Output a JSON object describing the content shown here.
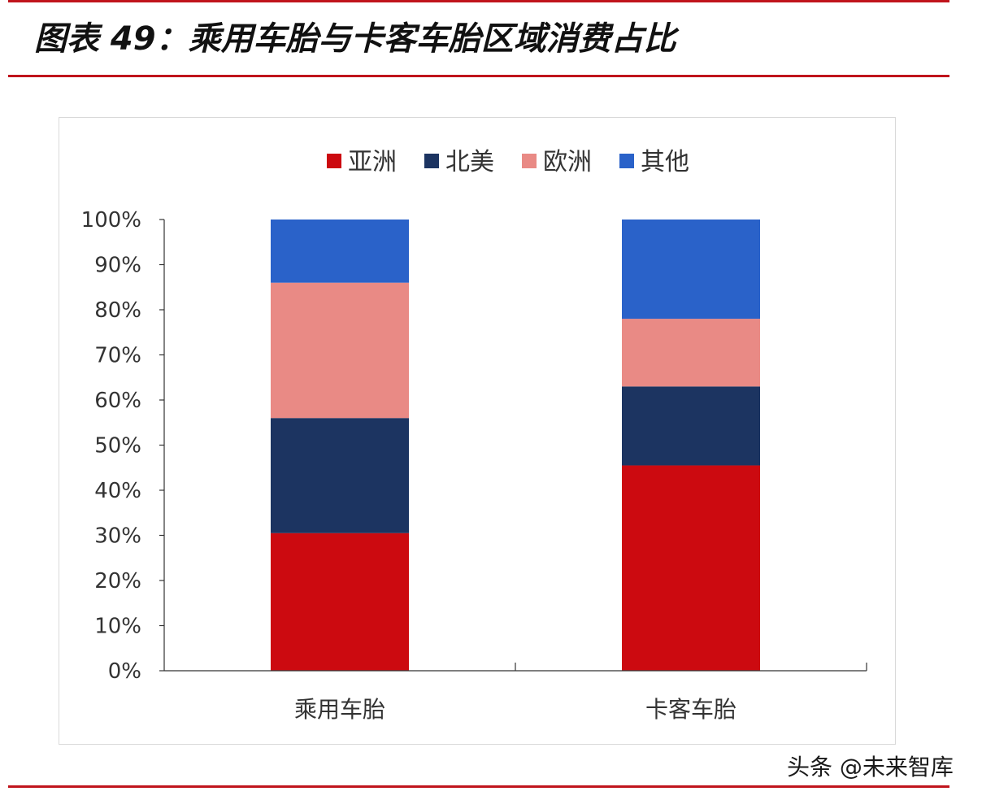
{
  "header": {
    "title": "图表 49：乘用车胎与卡客车胎区域消费占比"
  },
  "watermark": "头条 @未来智库",
  "colors": {
    "rule": "#c0141c",
    "asia": "#cc0a10",
    "north_america": "#1c3461",
    "europe": "#e98a85",
    "other": "#2a62c9"
  },
  "chart_data": {
    "type": "bar",
    "stacked": true,
    "categories": [
      "乘用车胎",
      "卡客车胎"
    ],
    "series": [
      {
        "name": "亚洲",
        "values": [
          30.5,
          45.5
        ],
        "color": "#cc0a10"
      },
      {
        "name": "北美",
        "values": [
          25.5,
          17.5
        ],
        "color": "#1c3461"
      },
      {
        "name": "欧洲",
        "values": [
          30.0,
          15.0
        ],
        "color": "#e98a85"
      },
      {
        "name": "其他",
        "values": [
          14.0,
          22.0
        ],
        "color": "#2a62c9"
      }
    ],
    "ylim": [
      0,
      100
    ],
    "yticks": [
      "0%",
      "10%",
      "20%",
      "30%",
      "40%",
      "50%",
      "60%",
      "70%",
      "80%",
      "90%",
      "100%"
    ],
    "legend_position": "top-center",
    "grid": false
  }
}
